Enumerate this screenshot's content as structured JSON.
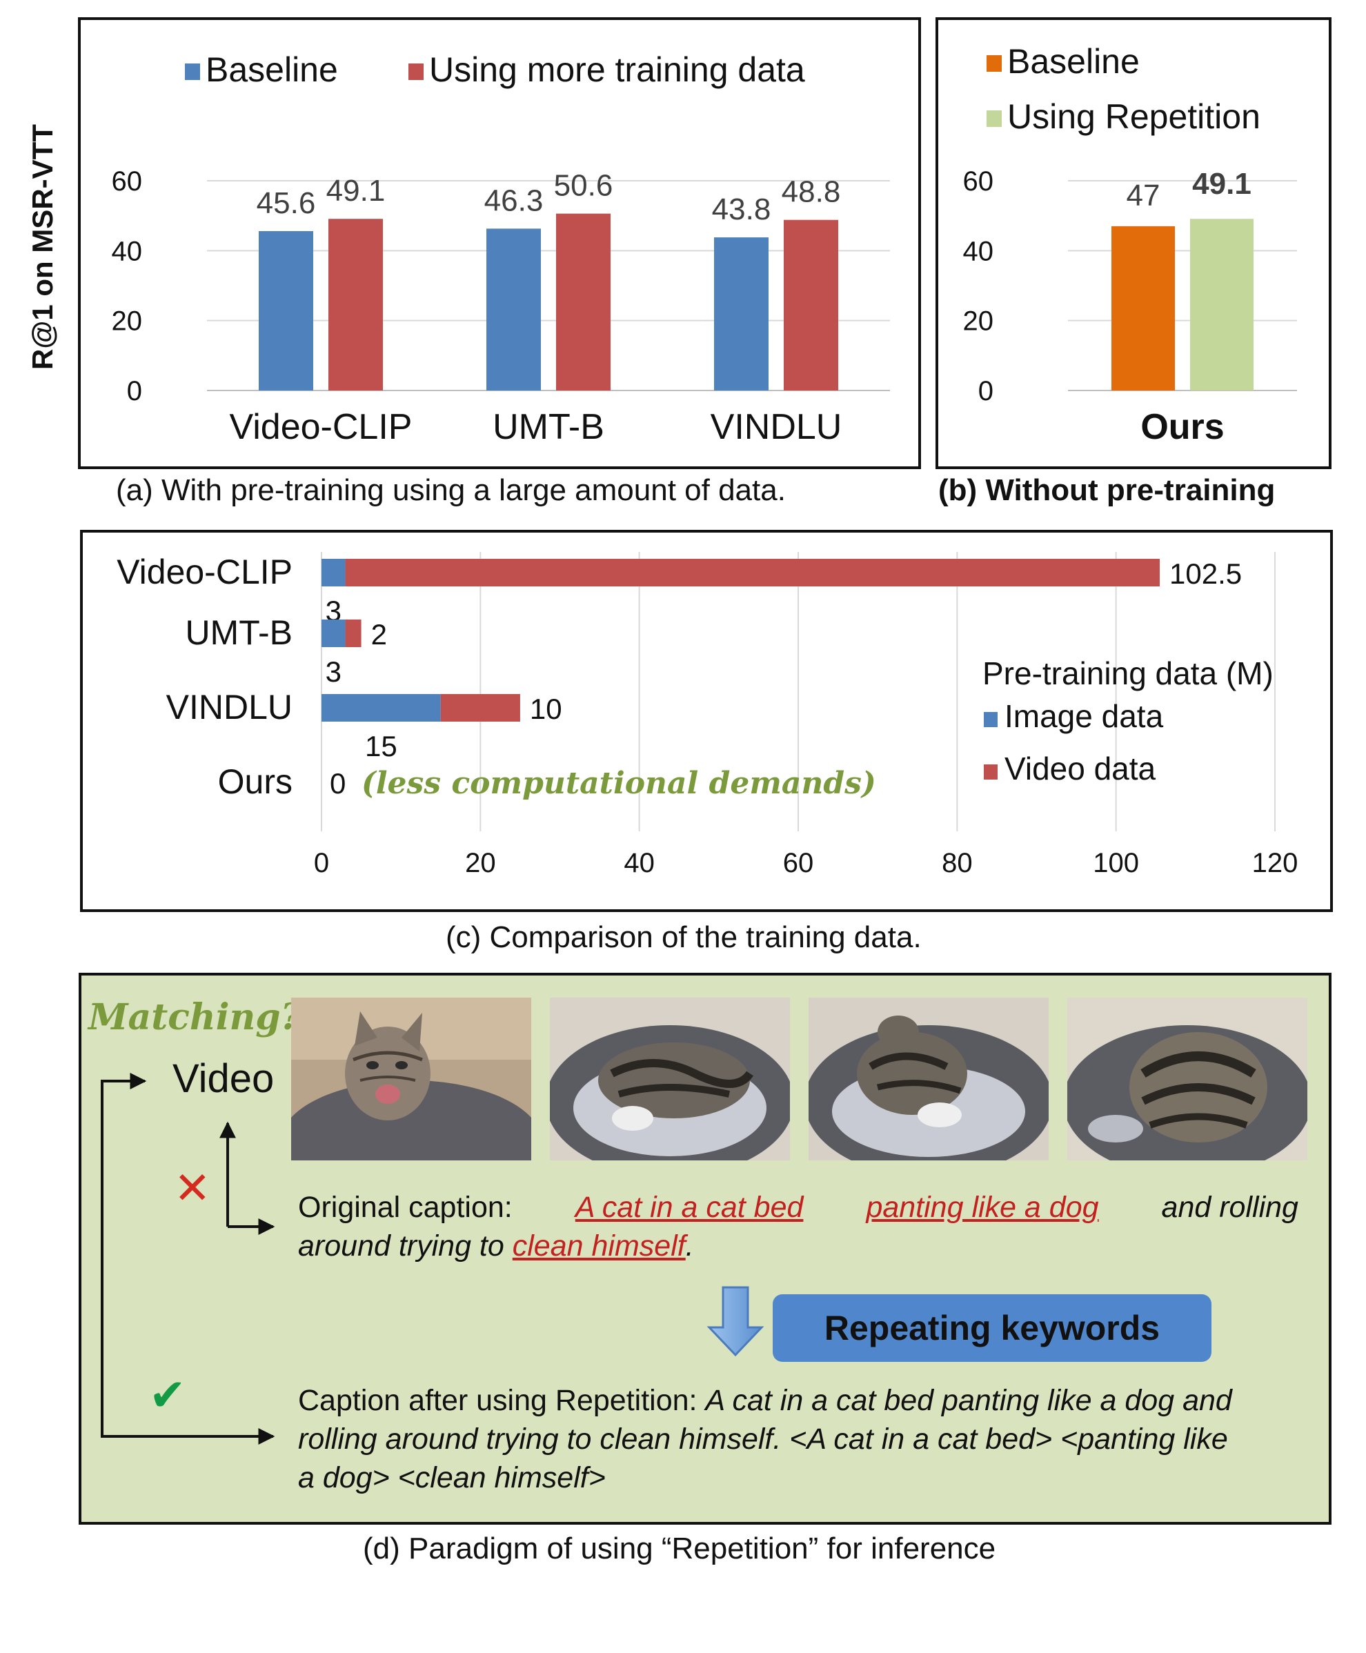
{
  "y_axis_label": "R@1 on MSR-VTT",
  "colors": {
    "baseline_blue": "#4f81bd",
    "more_data_red": "#c0504d",
    "baseline_orange": "#e36c0a",
    "repetition_green": "#c4d79b",
    "panel_bg": "#d9e4bf",
    "handwriting_green": "#7a9a3c"
  },
  "chart_data": [
    {
      "id": "a",
      "type": "bar",
      "caption": "(a) With pre-training using a large amount of data.",
      "categories": [
        "Video-CLIP",
        "UMT-B",
        "VINDLU"
      ],
      "series": [
        {
          "name": "Baseline",
          "values": [
            45.6,
            46.3,
            43.8
          ]
        },
        {
          "name": "Using more training data",
          "values": [
            49.1,
            50.6,
            48.8
          ]
        }
      ],
      "ylim": [
        0,
        60
      ],
      "yticks": [
        "0",
        "20",
        "40",
        "60"
      ],
      "legend": "top"
    },
    {
      "id": "b",
      "type": "bar",
      "caption": "(b) Without pre-training",
      "categories": [
        "Ours"
      ],
      "series": [
        {
          "name": "Baseline",
          "values": [
            47
          ]
        },
        {
          "name": "Using Repetition",
          "values": [
            49.1
          ]
        }
      ],
      "ylim": [
        0,
        60
      ],
      "yticks": [
        "0",
        "20",
        "40",
        "60"
      ],
      "legend": "top"
    },
    {
      "id": "c",
      "type": "bar",
      "orientation": "horizontal-stacked",
      "caption": "(c) Comparison of the training data.",
      "legend_title": "Pre-training data (M)",
      "categories": [
        "Video-CLIP",
        "UMT-B",
        "VINDLU",
        "Ours"
      ],
      "series": [
        {
          "name": "Image data",
          "values": [
            3,
            3,
            15,
            0
          ]
        },
        {
          "name": "Video data",
          "values": [
            102.5,
            2,
            10,
            0
          ]
        }
      ],
      "ours_note": "(less computational demands)",
      "xlim": [
        0,
        120
      ],
      "xticks": [
        "0",
        "20",
        "40",
        "60",
        "80",
        "100",
        "120"
      ]
    }
  ],
  "panel_d": {
    "matching_label": "Matching?",
    "video_label": "Video",
    "cross_symbol": "✕",
    "check_symbol": "✔",
    "original_prefix": "Original caption:",
    "orig_phrase1": "A cat in a cat bed",
    "orig_phrase2": "panting like a dog",
    "orig_mid": "and rolling",
    "orig_line2_start": "around trying to",
    "orig_phrase3": "clean himself",
    "orig_end": ".",
    "button_label": "Repeating keywords",
    "after_prefix": "Caption after using Repetition:",
    "after_line1": "A cat in a cat bed panting like a dog and",
    "after_line2": "rolling around trying to clean himself. <A cat in a cat bed> <panting like",
    "after_line3": "a dog> <clean himself>",
    "caption": "(d) Paradigm of using “Repetition” for inference"
  }
}
